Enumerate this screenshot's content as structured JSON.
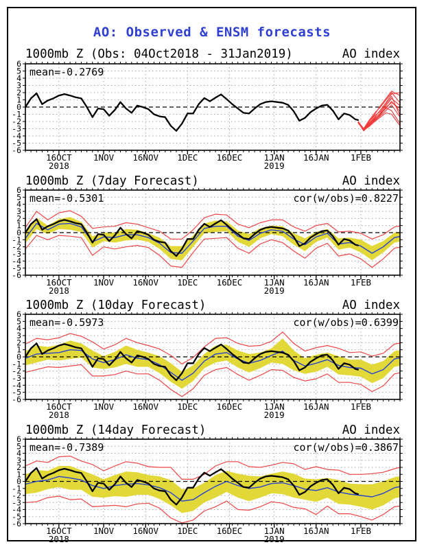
{
  "chart_data": {
    "type": "line",
    "title": "AO: Observed & ENSM forecasts",
    "y_axis": {
      "min": -6,
      "max": 6,
      "tick_step": 1,
      "label": "AO index"
    },
    "x_axis": {
      "domain_days": [
        0,
        134
      ],
      "ticks": [
        {
          "day": 12,
          "label": "16OCT",
          "year": "2018"
        },
        {
          "day": 28,
          "label": "1NOV"
        },
        {
          "day": 43,
          "label": "16NOV"
        },
        {
          "day": 58,
          "label": "1DEC"
        },
        {
          "day": 73,
          "label": "16DEC"
        },
        {
          "day": 89,
          "label": "1JAN",
          "year": "2019"
        },
        {
          "day": 104,
          "label": "16JAN"
        },
        {
          "day": 120,
          "label": "1FEB"
        }
      ]
    },
    "observed": {
      "start_day": 0,
      "step_days": 2,
      "last_day": 119,
      "values": [
        0.0,
        1.2,
        1.9,
        0.4,
        0.9,
        1.2,
        1.6,
        1.8,
        1.6,
        1.35,
        1.2,
        0.0,
        -1.4,
        -0.2,
        -0.3,
        -1.2,
        -0.4,
        0.7,
        -0.2,
        -0.8,
        0.2,
        0.0,
        -0.3,
        -1.0,
        -1.3,
        -1.4,
        -2.6,
        -3.3,
        -2.3,
        -0.9,
        -0.9,
        0.4,
        1.25,
        0.8,
        1.3,
        1.75,
        1.1,
        0.4,
        -0.2,
        -0.8,
        -0.9,
        -0.2,
        0.4,
        0.7,
        0.8,
        0.7,
        0.6,
        0.3,
        -0.6,
        -1.9,
        -1.5,
        -0.7,
        -0.2,
        0.2,
        0.3,
        -0.5,
        -1.7,
        -0.9,
        -1.1,
        -1.7,
        -1.8
      ]
    },
    "panels": [
      {
        "kind": "observed",
        "title_left": "1000mb Z (Obs: 04Oct2018 - 31Jan2019)",
        "title_right": "AO index",
        "stat_left": "mean=-0.2769",
        "stat_right": "",
        "spaghetti_days": [
          119,
          121,
          123,
          125,
          127,
          129,
          131,
          134
        ],
        "spaghetti_members": [
          [
            -2.0,
            -3.2,
            -2.0,
            -1.0,
            0.2,
            1.2,
            2.2,
            1.6
          ],
          [
            -2.2,
            -3.0,
            -2.2,
            -1.4,
            -0.4,
            0.6,
            1.8,
            2.0
          ],
          [
            -2.0,
            -3.1,
            -2.4,
            -1.6,
            -0.8,
            0.2,
            1.2,
            0.2
          ],
          [
            -2.1,
            -3.3,
            -2.6,
            -1.8,
            -1.0,
            -0.2,
            0.8,
            -0.6
          ],
          [
            -2.0,
            -3.0,
            -2.0,
            -1.2,
            -0.6,
            0.4,
            1.5,
            -1.2
          ],
          [
            -2.2,
            -3.2,
            -2.5,
            -1.9,
            -1.2,
            -0.5,
            0.3,
            -1.4
          ],
          [
            -2.0,
            -3.1,
            -2.3,
            -1.5,
            -0.9,
            -0.1,
            -0.5,
            -2.3
          ],
          [
            -2.1,
            -3.2,
            -2.7,
            -2.0,
            -1.4,
            -0.8,
            -1.0,
            -2.6
          ],
          [
            -2.0,
            -3.0,
            -1.8,
            -0.8,
            0.0,
            1.0,
            2.0,
            0.6
          ],
          [
            -2.1,
            -3.1,
            -2.4,
            -1.7,
            -1.1,
            0.0,
            0.6,
            -0.2
          ]
        ]
      },
      {
        "kind": "forecast",
        "title_left": "1000mb Z (7day Forecast)",
        "title_right": "AO index",
        "stat_left": "mean=-0.5301",
        "stat_right": "cor(w/obs)=0.8227",
        "forecast": {
          "start_day": 0,
          "step_days": 4,
          "mean": [
            -0.8,
            1.3,
            0.4,
            1.2,
            1.3,
            0.8,
            -1.3,
            -0.6,
            -0.7,
            -0.3,
            -0.3,
            -0.7,
            -1.5,
            -2.8,
            -2.9,
            -1.2,
            0.6,
            0.9,
            0.9,
            -0.5,
            -1.1,
            -0.1,
            0.4,
            0.2,
            -0.9,
            -1.7,
            -0.6,
            -0.1,
            -1.6,
            -1.4,
            -1.9,
            -2.9,
            -2.0,
            -0.7,
            -0.4
          ],
          "band_halfwidth": [
            0.7,
            0.8,
            0.6,
            0.7,
            0.9,
            0.7,
            0.8,
            0.6,
            0.7,
            0.8,
            0.7,
            0.6,
            0.8,
            0.9,
            1.0,
            0.8,
            0.7,
            0.8,
            0.7,
            0.8,
            0.9,
            0.7,
            0.6,
            0.7,
            0.8,
            0.9,
            0.7,
            0.6,
            0.8,
            0.7,
            0.9,
            1.0,
            0.8,
            0.7,
            0.7
          ],
          "envelope_halfwidth": [
            1.5,
            1.7,
            1.4,
            1.6,
            1.8,
            1.5,
            1.9,
            1.4,
            1.6,
            1.7,
            1.5,
            1.4,
            1.7,
            1.9,
            2.0,
            1.6,
            1.5,
            1.7,
            1.6,
            1.7,
            1.8,
            1.5,
            1.4,
            1.6,
            1.7,
            1.9,
            1.6,
            1.4,
            1.7,
            1.6,
            1.8,
            2.0,
            1.7,
            1.5,
            1.5
          ]
        }
      },
      {
        "kind": "forecast",
        "title_left": "1000mb Z (10day Forecast)",
        "title_right": "AO index",
        "stat_left": "mean=-0.5973",
        "stat_right": "cor(w/obs)=0.6399",
        "forecast": {
          "start_day": 0,
          "step_days": 4,
          "mean": [
            -0.2,
            0.4,
            0.5,
            0.6,
            1.0,
            0.9,
            -0.3,
            -0.8,
            -0.4,
            0.3,
            -0.2,
            -0.4,
            -1.1,
            -2.2,
            -3.3,
            -2.3,
            -0.6,
            0.4,
            0.6,
            -0.3,
            -0.9,
            -0.5,
            0.2,
            0.8,
            -0.5,
            -1.3,
            -0.9,
            -0.4,
            -1.2,
            -1.5,
            -1.6,
            -2.4,
            -1.8,
            -0.3,
            0.0
          ],
          "band_halfwidth": [
            1.0,
            1.2,
            0.9,
            1.1,
            1.3,
            1.0,
            1.2,
            0.9,
            1.1,
            1.3,
            1.2,
            1.0,
            1.2,
            1.3,
            1.2,
            1.1,
            1.0,
            1.2,
            1.1,
            1.2,
            1.3,
            1.1,
            1.0,
            1.8,
            1.4,
            1.1,
            1.2,
            1.0,
            1.3,
            1.1,
            1.2,
            1.3,
            1.2,
            1.1,
            1.1
          ],
          "envelope_halfwidth": [
            2.0,
            2.2,
            1.9,
            2.1,
            2.3,
            2.0,
            2.4,
            1.9,
            2.1,
            2.3,
            2.2,
            2.0,
            2.2,
            2.4,
            2.3,
            2.2,
            2.0,
            2.2,
            2.1,
            2.2,
            2.4,
            2.1,
            2.0,
            2.7,
            2.4,
            2.1,
            2.2,
            2.0,
            2.4,
            2.1,
            2.3,
            2.5,
            2.3,
            2.1,
            2.1
          ],
          "end_day_note": ""
        }
      },
      {
        "kind": "forecast",
        "title_left": "1000mb Z (14day Forecast)",
        "title_right": "AO index",
        "stat_left": "mean=-0.7389",
        "stat_right": "cor(w/obs)=0.3867",
        "forecast": {
          "start_day": 0,
          "step_days": 4,
          "mean": [
            -0.4,
            0.0,
            0.2,
            0.7,
            0.5,
            0.2,
            -0.6,
            -1.0,
            -0.6,
            -0.4,
            -0.3,
            -0.5,
            -0.9,
            -1.6,
            -2.8,
            -2.6,
            -1.6,
            -0.7,
            0.0,
            -0.6,
            -1.0,
            -0.8,
            -0.3,
            -0.2,
            -0.6,
            -1.1,
            -1.3,
            -0.9,
            -1.5,
            -1.8,
            -2.0,
            -2.2,
            -1.7,
            -0.9,
            -0.6
          ],
          "band_halfwidth": [
            1.4,
            1.6,
            1.3,
            1.5,
            1.7,
            1.4,
            1.6,
            1.3,
            1.5,
            1.8,
            1.6,
            1.4,
            1.6,
            1.8,
            1.7,
            1.6,
            1.4,
            1.6,
            1.5,
            1.7,
            1.8,
            1.5,
            1.4,
            1.6,
            1.7,
            1.5,
            1.6,
            1.4,
            1.7,
            1.5,
            1.6,
            1.8,
            1.7,
            1.5,
            1.5
          ],
          "envelope_halfwidth": [
            2.6,
            2.9,
            2.5,
            2.8,
            3.1,
            2.7,
            3.0,
            2.5,
            2.8,
            3.2,
            2.9,
            2.6,
            2.9,
            3.6,
            3.1,
            2.9,
            2.6,
            2.9,
            2.8,
            3.4,
            3.1,
            2.8,
            2.6,
            2.9,
            3.1,
            2.8,
            3.4,
            2.6,
            3.1,
            2.8,
            3.0,
            3.3,
            3.0,
            2.7,
            2.8
          ]
        }
      }
    ],
    "colors": {
      "title": "#2e3fd2",
      "observed": "#000000",
      "ensemble_mean": "#2743cf",
      "spread_band": "#e2d838",
      "envelope": "#ee4444",
      "spaghetti": "#f23a3a",
      "grid": "#a8a8a8",
      "zero_line": "#000000",
      "frame": "#000000"
    }
  }
}
